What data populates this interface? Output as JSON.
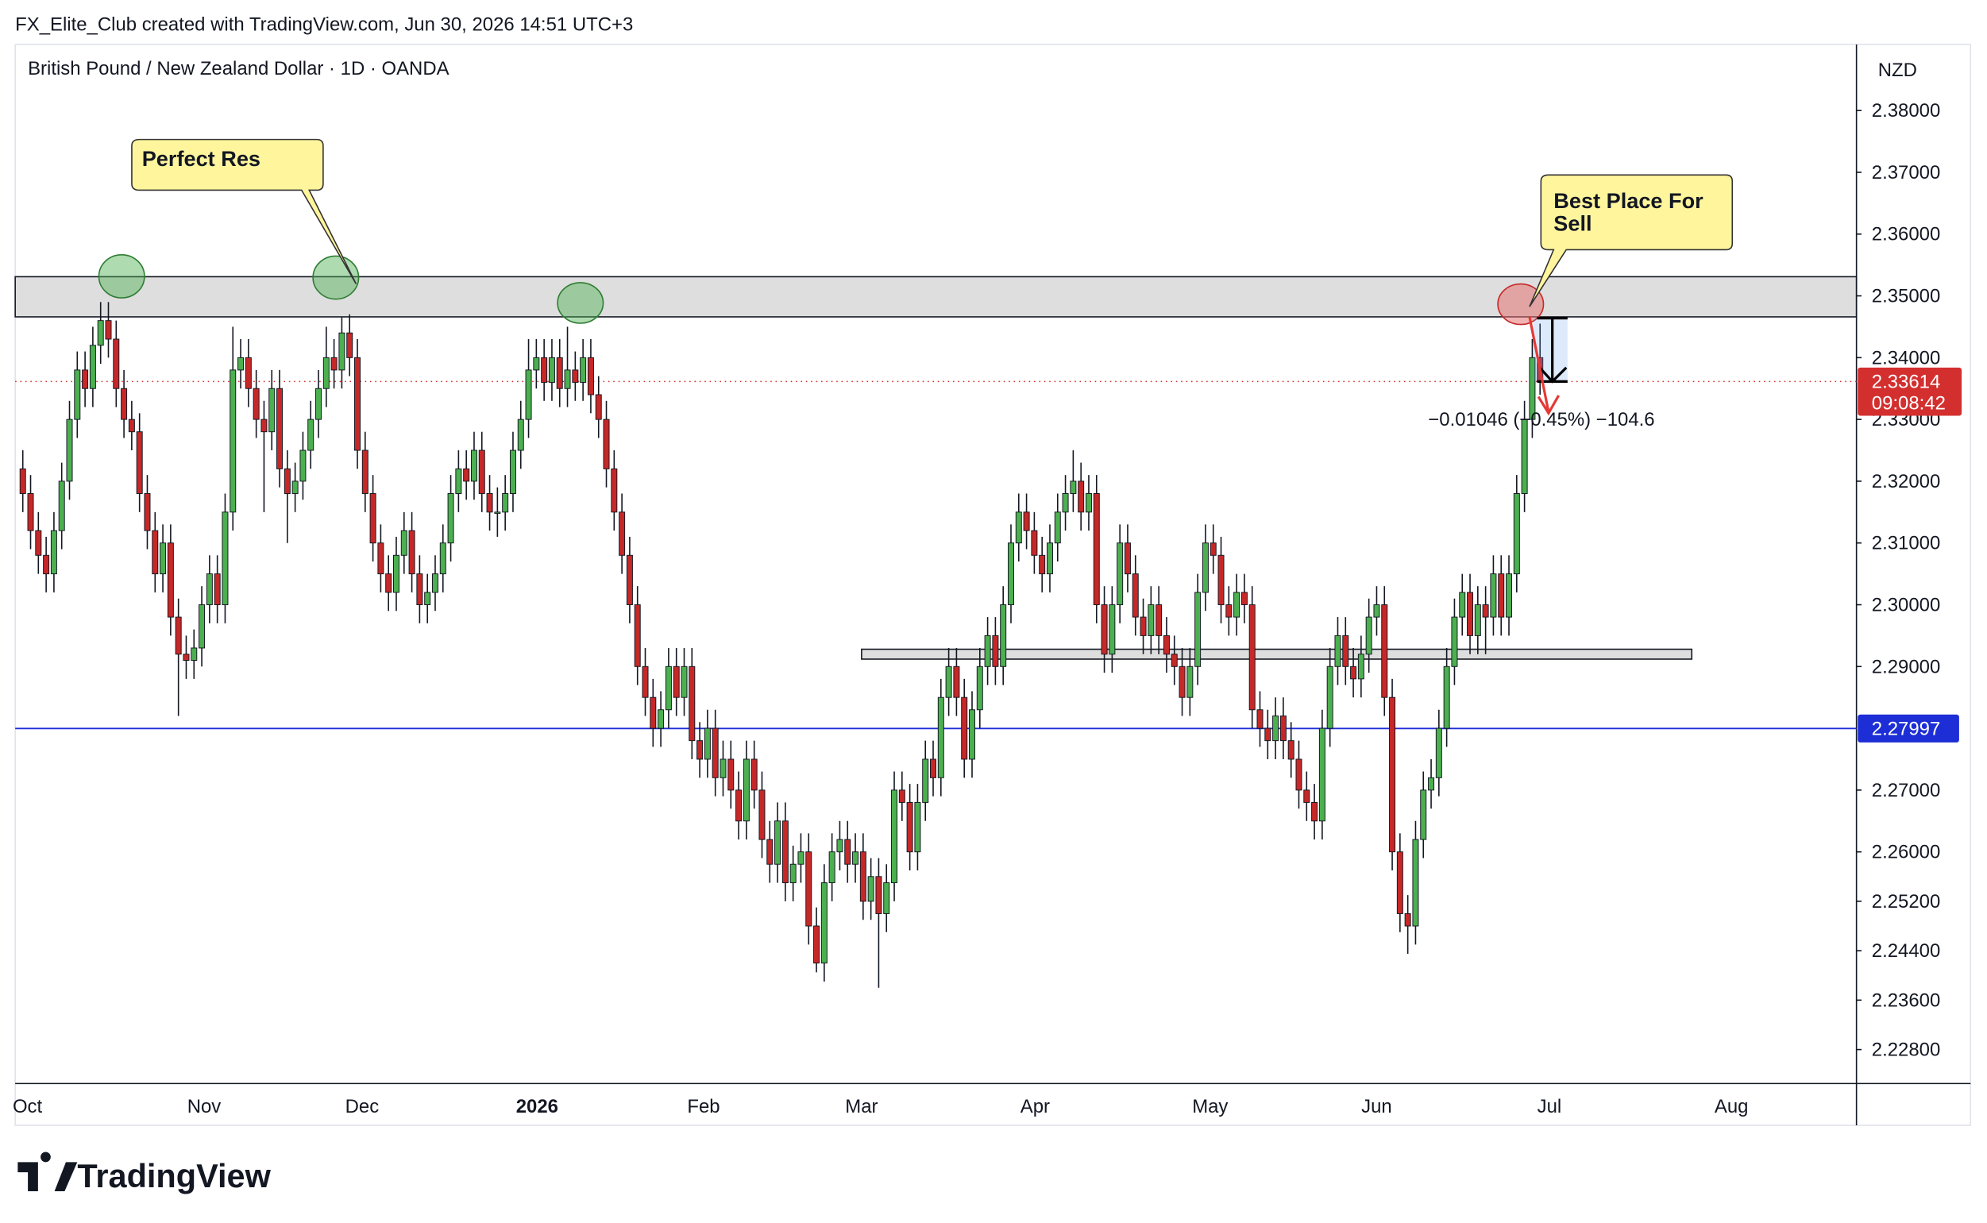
{
  "chart_data": {
    "type": "candlestick",
    "header": "FX_Elite_Club created with TradingView.com, Jun 30, 2026 14:51 UTC+3",
    "title": "British Pound / New Zealand Dollar · 1D · OANDA",
    "currency": "NZD",
    "up_color": "#4caf50",
    "down_color": "#c62828",
    "ylim": [
      2.2225,
      2.3907
    ],
    "yticks": [
      {
        "value": 2.38,
        "label": "2.38000"
      },
      {
        "value": 2.37,
        "label": "2.37000"
      },
      {
        "value": 2.36,
        "label": "2.36000"
      },
      {
        "value": 2.35,
        "label": "2.35000"
      },
      {
        "value": 2.34,
        "label": "2.34000"
      },
      {
        "value": 2.33,
        "label": "2.33000"
      },
      {
        "value": 2.32,
        "label": "2.32000"
      },
      {
        "value": 2.31,
        "label": "2.31000"
      },
      {
        "value": 2.3,
        "label": "2.30000"
      },
      {
        "value": 2.29,
        "label": "2.29000"
      },
      {
        "value": 2.27,
        "label": "2.27000"
      },
      {
        "value": 2.26,
        "label": "2.26000"
      },
      {
        "value": 2.252,
        "label": "2.25200"
      },
      {
        "value": 2.244,
        "label": "2.24400"
      },
      {
        "value": 2.236,
        "label": "2.23600"
      },
      {
        "value": 2.228,
        "label": "2.22800"
      }
    ],
    "x_labels": [
      "Oct",
      "Nov",
      "Dec",
      "2026",
      "Feb",
      "Mar",
      "Apr",
      "May",
      "Jun",
      "Jul",
      "Aug"
    ],
    "last_price": 2.33614,
    "countdown": "09:08:42",
    "price_line": 2.27997,
    "resistance_zone": [
      2.3466,
      2.3531
    ],
    "support_zone": [
      2.2912,
      2.2928
    ],
    "annotations": [
      "Perfect Res",
      "Best Place For Sell"
    ],
    "measure": "−0.01046 (−0.45%) −104.6",
    "brand": "TradingView",
    "candles": [
      [
        2.322,
        2.325,
        2.315,
        2.318
      ],
      [
        2.318,
        2.321,
        2.309,
        2.312
      ],
      [
        2.312,
        2.315,
        2.305,
        2.308
      ],
      [
        2.308,
        2.311,
        2.302,
        2.305
      ],
      [
        2.305,
        2.315,
        2.302,
        2.312
      ],
      [
        2.312,
        2.323,
        2.309,
        2.32
      ],
      [
        2.32,
        2.333,
        2.317,
        2.33
      ],
      [
        2.33,
        2.341,
        2.327,
        2.338
      ],
      [
        2.338,
        2.341,
        2.332,
        2.335
      ],
      [
        2.335,
        2.345,
        2.332,
        2.342
      ],
      [
        2.342,
        2.349,
        2.339,
        2.346
      ],
      [
        2.346,
        2.349,
        2.34,
        2.343
      ],
      [
        2.343,
        2.346,
        2.332,
        2.335
      ],
      [
        2.335,
        2.338,
        2.327,
        2.33
      ],
      [
        2.33,
        2.333,
        2.325,
        2.328
      ],
      [
        2.328,
        2.331,
        2.315,
        2.318
      ],
      [
        2.318,
        2.321,
        2.309,
        2.312
      ],
      [
        2.312,
        2.315,
        2.302,
        2.305
      ],
      [
        2.305,
        2.313,
        2.302,
        2.31
      ],
      [
        2.31,
        2.313,
        2.295,
        2.298
      ],
      [
        2.298,
        2.301,
        2.282,
        2.292
      ],
      [
        2.292,
        2.295,
        2.288,
        2.291
      ],
      [
        2.291,
        2.296,
        2.288,
        2.293
      ],
      [
        2.293,
        2.303,
        2.29,
        2.3
      ],
      [
        2.3,
        2.308,
        2.297,
        2.305
      ],
      [
        2.305,
        2.308,
        2.297,
        2.3
      ],
      [
        2.3,
        2.318,
        2.297,
        2.315
      ],
      [
        2.315,
        2.345,
        2.312,
        2.338
      ],
      [
        2.338,
        2.343,
        2.335,
        2.34
      ],
      [
        2.34,
        2.343,
        2.332,
        2.335
      ],
      [
        2.335,
        2.338,
        2.327,
        2.33
      ],
      [
        2.33,
        2.333,
        2.315,
        2.328
      ],
      [
        2.328,
        2.338,
        2.325,
        2.335
      ],
      [
        2.335,
        2.338,
        2.319,
        2.322
      ],
      [
        2.322,
        2.325,
        2.31,
        2.318
      ],
      [
        2.318,
        2.323,
        2.315,
        2.32
      ],
      [
        2.32,
        2.328,
        2.317,
        2.325
      ],
      [
        2.325,
        2.333,
        2.322,
        2.33
      ],
      [
        2.33,
        2.338,
        2.327,
        2.335
      ],
      [
        2.335,
        2.345,
        2.332,
        2.34
      ],
      [
        2.34,
        2.343,
        2.335,
        2.338
      ],
      [
        2.338,
        2.3465,
        2.335,
        2.344
      ],
      [
        2.344,
        2.347,
        2.337,
        2.34
      ],
      [
        2.34,
        2.343,
        2.322,
        2.325
      ],
      [
        2.325,
        2.328,
        2.315,
        2.318
      ],
      [
        2.318,
        2.321,
        2.307,
        2.31
      ],
      [
        2.31,
        2.313,
        2.302,
        2.305
      ],
      [
        2.305,
        2.308,
        2.299,
        2.302
      ],
      [
        2.302,
        2.311,
        2.299,
        2.308
      ],
      [
        2.308,
        2.315,
        2.305,
        2.312
      ],
      [
        2.312,
        2.315,
        2.302,
        2.305
      ],
      [
        2.305,
        2.308,
        2.297,
        2.3
      ],
      [
        2.3,
        2.305,
        2.297,
        2.302
      ],
      [
        2.302,
        2.308,
        2.299,
        2.305
      ],
      [
        2.305,
        2.313,
        2.302,
        2.31
      ],
      [
        2.31,
        2.321,
        2.307,
        2.318
      ],
      [
        2.318,
        2.325,
        2.315,
        2.322
      ],
      [
        2.322,
        2.325,
        2.317,
        2.32
      ],
      [
        2.32,
        2.328,
        2.317,
        2.325
      ],
      [
        2.325,
        2.328,
        2.315,
        2.318
      ],
      [
        2.318,
        2.321,
        2.312,
        2.315
      ],
      [
        2.315,
        2.319,
        2.311,
        2.315
      ],
      [
        2.315,
        2.321,
        2.312,
        2.318
      ],
      [
        2.318,
        2.328,
        2.315,
        2.325
      ],
      [
        2.325,
        2.333,
        2.322,
        2.33
      ],
      [
        2.33,
        2.343,
        2.327,
        2.338
      ],
      [
        2.338,
        2.343,
        2.335,
        2.34
      ],
      [
        2.34,
        2.343,
        2.333,
        2.336
      ],
      [
        2.336,
        2.343,
        2.333,
        2.34
      ],
      [
        2.34,
        2.343,
        2.332,
        2.335
      ],
      [
        2.335,
        2.345,
        2.332,
        2.338
      ],
      [
        2.338,
        2.341,
        2.333,
        2.336
      ],
      [
        2.336,
        2.343,
        2.333,
        2.34
      ],
      [
        2.34,
        2.343,
        2.331,
        2.334
      ],
      [
        2.334,
        2.337,
        2.327,
        2.33
      ],
      [
        2.33,
        2.333,
        2.319,
        2.322
      ],
      [
        2.322,
        2.325,
        2.312,
        2.315
      ],
      [
        2.315,
        2.318,
        2.305,
        2.308
      ],
      [
        2.308,
        2.311,
        2.297,
        2.3
      ],
      [
        2.3,
        2.303,
        2.287,
        2.29
      ],
      [
        2.29,
        2.293,
        2.282,
        2.285
      ],
      [
        2.285,
        2.288,
        2.277,
        2.28
      ],
      [
        2.28,
        2.286,
        2.277,
        2.283
      ],
      [
        2.283,
        2.293,
        2.28,
        2.29
      ],
      [
        2.29,
        2.293,
        2.282,
        2.285
      ],
      [
        2.285,
        2.293,
        2.282,
        2.29
      ],
      [
        2.29,
        2.293,
        2.275,
        2.278
      ],
      [
        2.278,
        2.281,
        2.272,
        2.275
      ],
      [
        2.275,
        2.283,
        2.272,
        2.28
      ],
      [
        2.28,
        2.283,
        2.269,
        2.272
      ],
      [
        2.272,
        2.278,
        2.269,
        2.275
      ],
      [
        2.275,
        2.278,
        2.267,
        2.27
      ],
      [
        2.27,
        2.273,
        2.262,
        2.265
      ],
      [
        2.265,
        2.278,
        2.262,
        2.275
      ],
      [
        2.275,
        2.278,
        2.267,
        2.27
      ],
      [
        2.27,
        2.273,
        2.259,
        2.262
      ],
      [
        2.262,
        2.265,
        2.255,
        2.258
      ],
      [
        2.258,
        2.268,
        2.255,
        2.265
      ],
      [
        2.265,
        2.268,
        2.252,
        2.255
      ],
      [
        2.255,
        2.261,
        2.252,
        2.258
      ],
      [
        2.258,
        2.263,
        2.255,
        2.26
      ],
      [
        2.26,
        2.263,
        2.245,
        2.248
      ],
      [
        2.248,
        2.251,
        2.2405,
        2.242
      ],
      [
        2.242,
        2.258,
        2.239,
        2.255
      ],
      [
        2.255,
        2.263,
        2.252,
        2.26
      ],
      [
        2.26,
        2.265,
        2.257,
        2.262
      ],
      [
        2.262,
        2.265,
        2.255,
        2.258
      ],
      [
        2.258,
        2.263,
        2.255,
        2.26
      ],
      [
        2.26,
        2.263,
        2.249,
        2.252
      ],
      [
        2.252,
        2.259,
        2.249,
        2.256
      ],
      [
        2.256,
        2.259,
        2.238,
        2.25
      ],
      [
        2.25,
        2.258,
        2.247,
        2.255
      ],
      [
        2.255,
        2.273,
        2.252,
        2.27
      ],
      [
        2.27,
        2.273,
        2.265,
        2.268
      ],
      [
        2.268,
        2.271,
        2.257,
        2.26
      ],
      [
        2.26,
        2.271,
        2.257,
        2.268
      ],
      [
        2.268,
        2.278,
        2.265,
        2.275
      ],
      [
        2.275,
        2.278,
        2.269,
        2.272
      ],
      [
        2.272,
        2.288,
        2.269,
        2.285
      ],
      [
        2.285,
        2.293,
        2.282,
        2.29
      ],
      [
        2.29,
        2.293,
        2.282,
        2.285
      ],
      [
        2.285,
        2.288,
        2.272,
        2.275
      ],
      [
        2.275,
        2.286,
        2.272,
        2.283
      ],
      [
        2.283,
        2.293,
        2.28,
        2.29
      ],
      [
        2.29,
        2.298,
        2.287,
        2.295
      ],
      [
        2.295,
        2.298,
        2.287,
        2.29
      ],
      [
        2.29,
        2.303,
        2.287,
        2.3
      ],
      [
        2.3,
        2.313,
        2.297,
        2.31
      ],
      [
        2.31,
        2.318,
        2.307,
        2.315
      ],
      [
        2.315,
        2.318,
        2.309,
        2.312
      ],
      [
        2.312,
        2.315,
        2.305,
        2.308
      ],
      [
        2.308,
        2.311,
        2.302,
        2.305
      ],
      [
        2.305,
        2.313,
        2.302,
        2.31
      ],
      [
        2.31,
        2.318,
        2.307,
        2.315
      ],
      [
        2.315,
        2.321,
        2.312,
        2.318
      ],
      [
        2.318,
        2.325,
        2.315,
        2.32
      ],
      [
        2.32,
        2.323,
        2.312,
        2.315
      ],
      [
        2.315,
        2.321,
        2.312,
        2.318
      ],
      [
        2.318,
        2.321,
        2.297,
        2.3
      ],
      [
        2.3,
        2.303,
        2.289,
        2.292
      ],
      [
        2.292,
        2.303,
        2.289,
        2.3
      ],
      [
        2.3,
        2.313,
        2.297,
        2.31
      ],
      [
        2.31,
        2.313,
        2.302,
        2.305
      ],
      [
        2.305,
        2.308,
        2.295,
        2.298
      ],
      [
        2.298,
        2.301,
        2.292,
        2.295
      ],
      [
        2.295,
        2.303,
        2.292,
        2.3
      ],
      [
        2.3,
        2.303,
        2.292,
        2.295
      ],
      [
        2.295,
        2.298,
        2.289,
        2.292
      ],
      [
        2.292,
        2.295,
        2.287,
        2.29
      ],
      [
        2.29,
        2.293,
        2.282,
        2.285
      ],
      [
        2.285,
        2.293,
        2.282,
        2.29
      ],
      [
        2.29,
        2.305,
        2.287,
        2.302
      ],
      [
        2.302,
        2.313,
        2.299,
        2.31
      ],
      [
        2.31,
        2.313,
        2.305,
        2.308
      ],
      [
        2.308,
        2.311,
        2.297,
        2.3
      ],
      [
        2.3,
        2.303,
        2.295,
        2.298
      ],
      [
        2.298,
        2.305,
        2.295,
        2.302
      ],
      [
        2.302,
        2.305,
        2.297,
        2.3
      ],
      [
        2.3,
        2.303,
        2.28,
        2.283
      ],
      [
        2.283,
        2.286,
        2.277,
        2.28
      ],
      [
        2.28,
        2.283,
        2.275,
        2.278
      ],
      [
        2.278,
        2.285,
        2.275,
        2.282
      ],
      [
        2.282,
        2.285,
        2.275,
        2.278
      ],
      [
        2.278,
        2.281,
        2.272,
        2.275
      ],
      [
        2.275,
        2.278,
        2.267,
        2.27
      ],
      [
        2.27,
        2.273,
        2.265,
        2.268
      ],
      [
        2.268,
        2.271,
        2.262,
        2.265
      ],
      [
        2.265,
        2.283,
        2.262,
        2.28
      ],
      [
        2.28,
        2.293,
        2.277,
        2.29
      ],
      [
        2.29,
        2.298,
        2.287,
        2.295
      ],
      [
        2.295,
        2.298,
        2.287,
        2.29
      ],
      [
        2.29,
        2.293,
        2.285,
        2.288
      ],
      [
        2.288,
        2.295,
        2.285,
        2.292
      ],
      [
        2.292,
        2.301,
        2.289,
        2.298
      ],
      [
        2.298,
        2.303,
        2.295,
        2.3
      ],
      [
        2.3,
        2.303,
        2.282,
        2.285
      ],
      [
        2.285,
        2.288,
        2.257,
        2.26
      ],
      [
        2.26,
        2.263,
        2.247,
        2.25
      ],
      [
        2.25,
        2.253,
        2.2435,
        2.248
      ],
      [
        2.248,
        2.265,
        2.245,
        2.262
      ],
      [
        2.262,
        2.273,
        2.259,
        2.27
      ],
      [
        2.27,
        2.275,
        2.267,
        2.272
      ],
      [
        2.272,
        2.283,
        2.269,
        2.28
      ],
      [
        2.28,
        2.293,
        2.277,
        2.29
      ],
      [
        2.29,
        2.301,
        2.287,
        2.298
      ],
      [
        2.298,
        2.305,
        2.295,
        2.302
      ],
      [
        2.302,
        2.305,
        2.292,
        2.295
      ],
      [
        2.295,
        2.303,
        2.292,
        2.3
      ],
      [
        2.3,
        2.303,
        2.292,
        2.298
      ],
      [
        2.298,
        2.308,
        2.295,
        2.305
      ],
      [
        2.305,
        2.308,
        2.295,
        2.298
      ],
      [
        2.298,
        2.308,
        2.295,
        2.305
      ],
      [
        2.305,
        2.321,
        2.302,
        2.318
      ],
      [
        2.318,
        2.333,
        2.315,
        2.33
      ],
      [
        2.33,
        2.343,
        2.327,
        2.34
      ],
      [
        2.34,
        2.3455,
        2.334,
        2.33614
      ]
    ]
  }
}
